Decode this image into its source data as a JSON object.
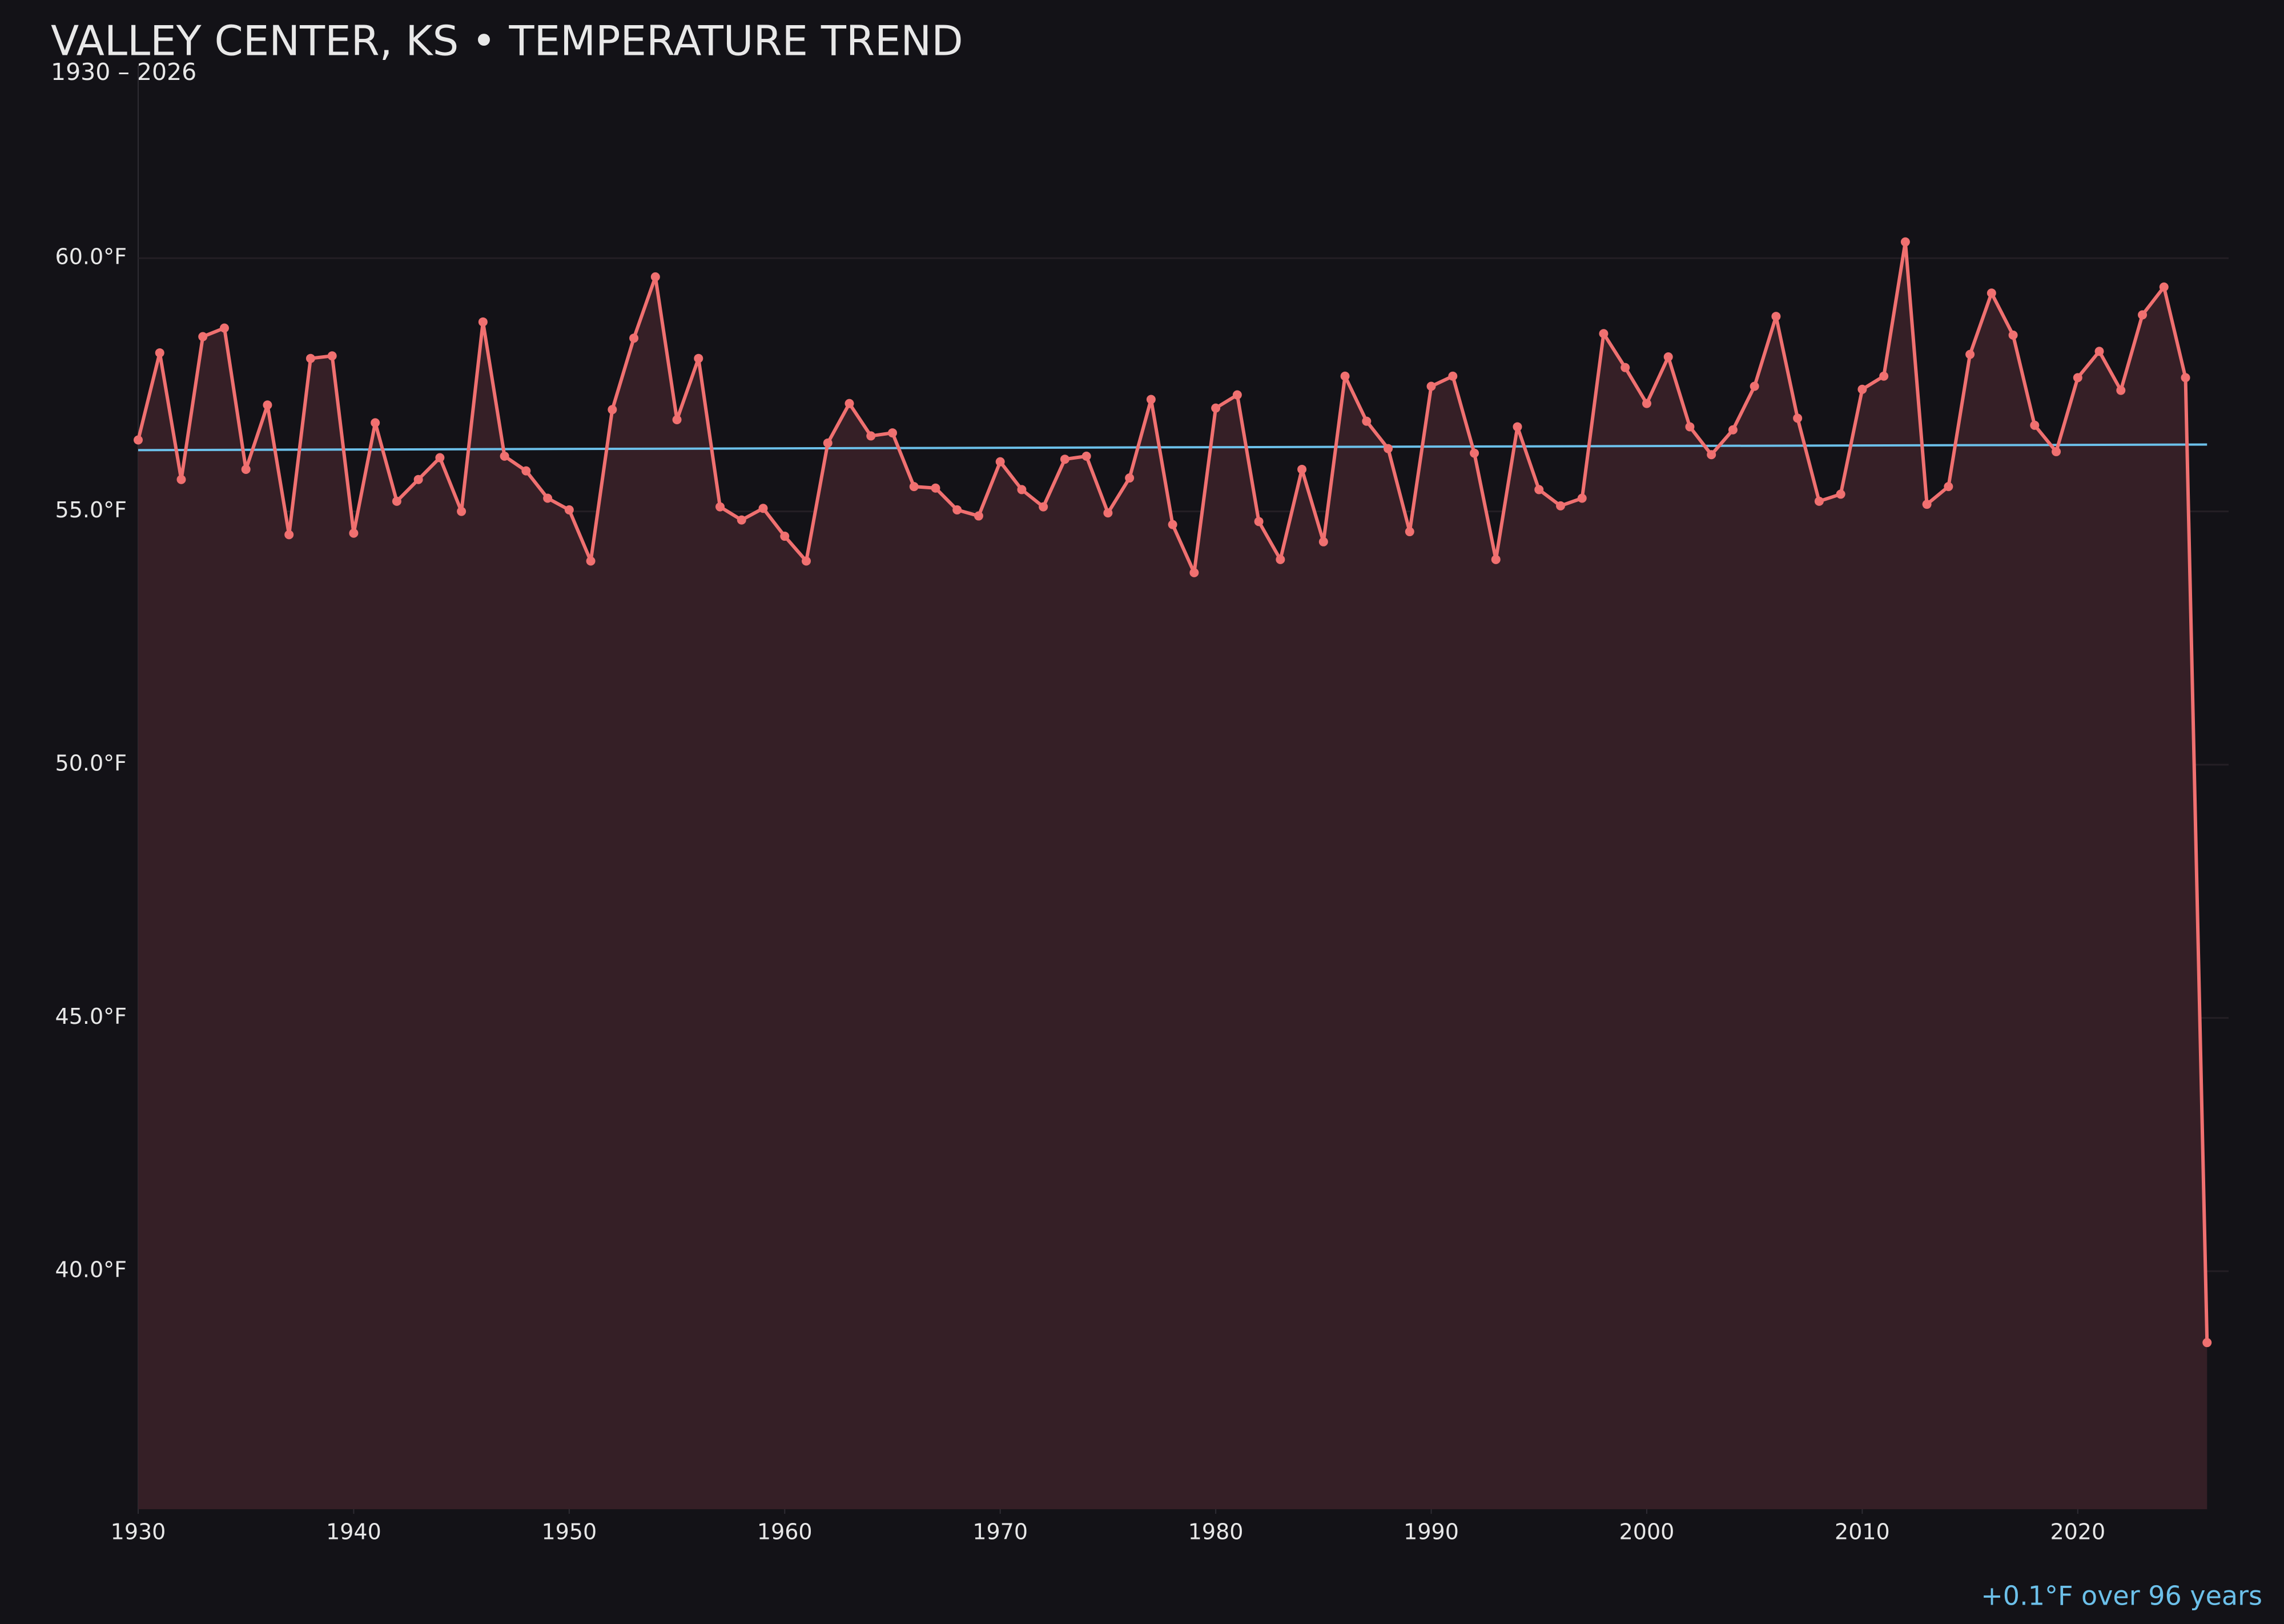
{
  "chart_data": {
    "type": "line",
    "title": "VALLEY CENTER, KS • TEMPERATURE TREND",
    "subtitle": "1930 – 2026",
    "annotation": "+0.1°F over 96 years",
    "x": [
      1930,
      1931,
      1932,
      1933,
      1934,
      1935,
      1936,
      1937,
      1938,
      1939,
      1940,
      1941,
      1942,
      1943,
      1944,
      1945,
      1946,
      1947,
      1948,
      1949,
      1950,
      1951,
      1952,
      1953,
      1954,
      1955,
      1956,
      1957,
      1958,
      1959,
      1960,
      1961,
      1962,
      1963,
      1964,
      1965,
      1966,
      1967,
      1968,
      1969,
      1970,
      1971,
      1972,
      1973,
      1974,
      1975,
      1976,
      1977,
      1978,
      1979,
      1980,
      1981,
      1982,
      1983,
      1984,
      1985,
      1986,
      1987,
      1988,
      1989,
      1990,
      1991,
      1992,
      1993,
      1994,
      1995,
      1996,
      1997,
      1998,
      1999,
      2000,
      2001,
      2002,
      2003,
      2004,
      2005,
      2006,
      2007,
      2008,
      2009,
      2010,
      2011,
      2012,
      2013,
      2014,
      2015,
      2016,
      2017,
      2018,
      2019,
      2020,
      2021,
      2022,
      2023,
      2024,
      2025,
      2026
    ],
    "series": [
      {
        "color": "#f07070",
        "fill": "#351f26",
        "values": [
          56.41,
          58.13,
          55.63,
          58.45,
          58.62,
          55.83,
          57.1,
          54.54,
          58.02,
          58.07,
          54.57,
          56.75,
          55.2,
          55.63,
          56.06,
          55.0,
          58.74,
          56.09,
          55.8,
          55.26,
          55.03,
          54.02,
          57.01,
          58.42,
          59.63,
          56.81,
          58.02,
          55.09,
          54.83,
          55.06,
          54.51,
          54.02,
          56.35,
          57.13,
          56.49,
          56.55,
          55.49,
          55.46,
          55.03,
          54.91,
          55.98,
          55.43,
          55.09,
          56.03,
          56.09,
          54.97,
          55.66,
          57.21,
          54.74,
          53.79,
          57.04,
          57.3,
          54.8,
          54.05,
          55.83,
          54.4,
          57.67,
          56.78,
          56.24,
          54.6,
          57.47,
          57.67,
          56.15,
          54.05,
          56.67,
          55.43,
          55.11,
          55.26,
          58.51,
          57.84,
          57.13,
          58.05,
          56.67,
          56.12,
          56.61,
          57.47,
          58.85,
          56.84,
          55.2,
          55.34,
          57.41,
          57.67,
          60.32,
          55.14,
          55.49,
          58.1,
          59.31,
          58.48,
          56.7,
          56.18,
          57.64,
          58.16,
          57.39,
          58.88,
          59.43,
          57.64,
          38.59
        ]
      }
    ],
    "trend": {
      "color": "#6cc0ea",
      "x": [
        1930,
        2026
      ],
      "values": [
        56.21,
        56.32
      ]
    },
    "xlim": [
      1930,
      2027
    ],
    "ylim": [
      35.3,
      63.8
    ],
    "xticks": [
      1930,
      1940,
      1950,
      1960,
      1970,
      1980,
      1990,
      2000,
      2010,
      2020
    ],
    "yticks": [
      {
        "value": 40,
        "label": "40.0°F"
      },
      {
        "value": 45,
        "label": "45.0°F"
      },
      {
        "value": 50,
        "label": "50.0°F"
      },
      {
        "value": 55,
        "label": "55.0°F"
      },
      {
        "value": 60,
        "label": "60.0°F"
      }
    ],
    "grid": true
  }
}
